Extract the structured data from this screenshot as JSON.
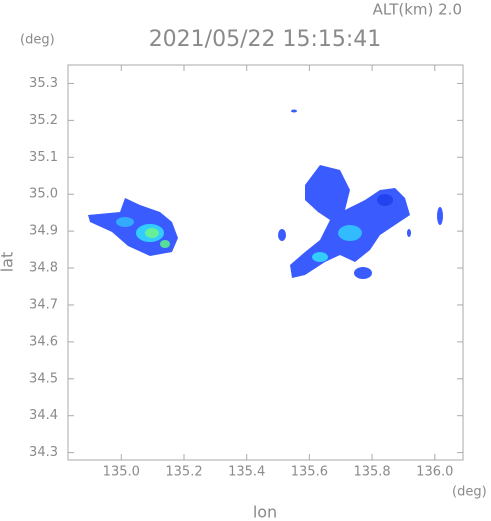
{
  "chart_data": {
    "type": "radar-map",
    "title": "2021/05/22 15:15:41",
    "altitude_label": "ALT(km)  2.0",
    "y_unit": "(deg)",
    "x_unit": "(deg)",
    "xlabel": "lon",
    "ylabel": "lat",
    "xlim": [
      134.83,
      136.09
    ],
    "xticks": [
      {
        "value": 135,
        "label": "135.0"
      },
      135.2,
      135.4,
      135.6,
      135.8,
      {
        "value": 136,
        "label": "136.0"
      }
    ],
    "ylim": [
      34.28,
      35.35
    ],
    "yticks": [
      34.3,
      34.4,
      34.5,
      34.6,
      34.7,
      34.8,
      34.9,
      {
        "value": 35,
        "label": "35.0"
      },
      35.1,
      35.2,
      35.3
    ],
    "grid": false
  }
}
